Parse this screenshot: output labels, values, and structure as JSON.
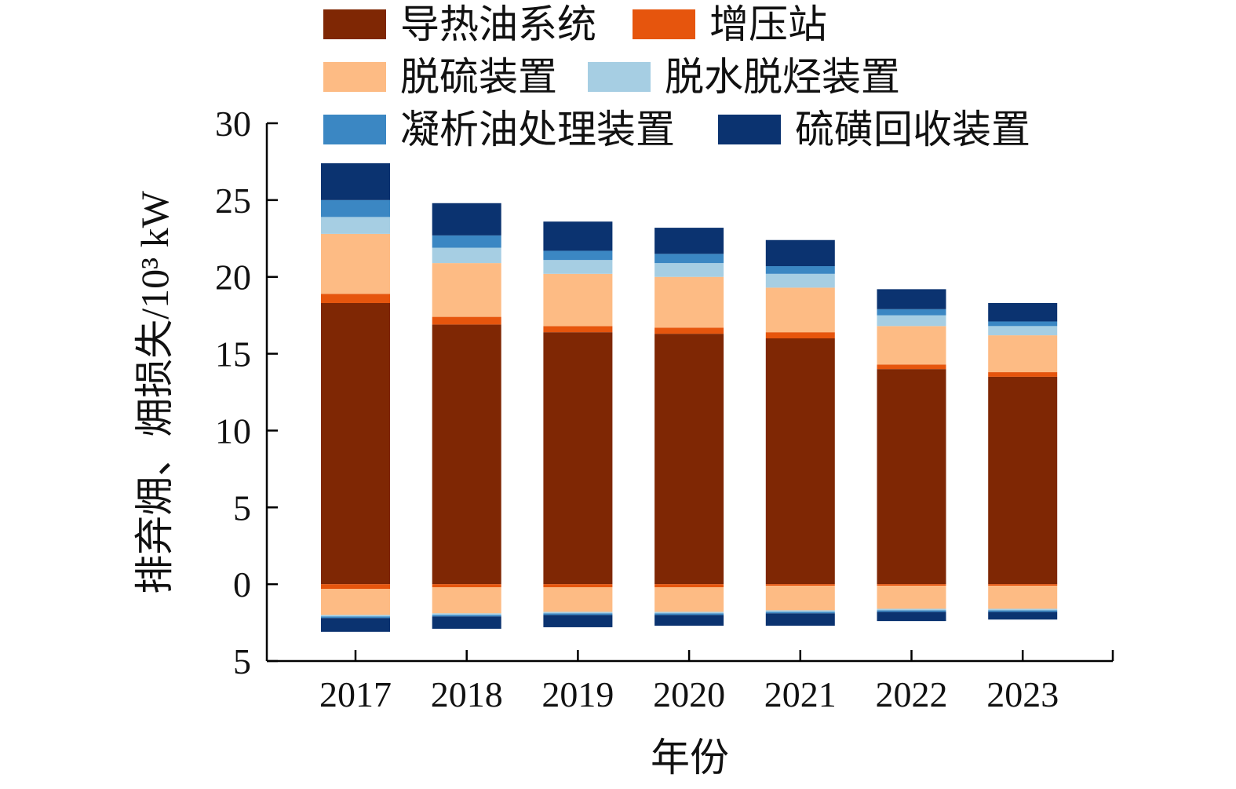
{
  "chart_data": {
    "type": "bar",
    "stacked": true,
    "categories": [
      "2017",
      "2018",
      "2019",
      "2020",
      "2021",
      "2022",
      "2023"
    ],
    "xlabel": "年份",
    "ylabel": "排弃㶲、㶲损失/10³ kW",
    "ylim": [
      -5,
      30
    ],
    "yticks": [
      30,
      25,
      20,
      15,
      10,
      5,
      0,
      -5
    ],
    "ytick_labels": [
      "30",
      "25",
      "20",
      "15",
      "10",
      "5",
      "0",
      "5"
    ],
    "legend_position": "top",
    "series": [
      {
        "name": "导热油系统",
        "color": "#7f2704",
        "values": [
          18.3,
          16.9,
          16.4,
          16.3,
          16.0,
          14.0,
          13.5
        ],
        "neg_values": [
          0,
          0,
          0,
          0,
          0,
          0,
          0
        ]
      },
      {
        "name": "增压站",
        "color": "#e6550d",
        "values": [
          0.6,
          0.5,
          0.4,
          0.4,
          0.4,
          0.3,
          0.3
        ],
        "neg_values": [
          -0.3,
          -0.2,
          -0.2,
          -0.2,
          -0.1,
          -0.1,
          -0.1
        ]
      },
      {
        "name": "脱硫装置",
        "color": "#fdbb84",
        "values": [
          3.9,
          3.5,
          3.4,
          3.3,
          2.9,
          2.5,
          2.4
        ],
        "neg_values": [
          -1.7,
          -1.7,
          -1.6,
          -1.6,
          -1.6,
          -1.5,
          -1.5
        ]
      },
      {
        "name": "脱水脱烃装置",
        "color": "#a6cee3",
        "values": [
          1.1,
          1.0,
          0.9,
          0.9,
          0.9,
          0.7,
          0.6
        ],
        "neg_values": [
          -0.1,
          -0.1,
          -0.1,
          -0.1,
          -0.1,
          -0.1,
          -0.1
        ]
      },
      {
        "name": "凝析油处理装置",
        "color": "#3b87c3",
        "values": [
          1.1,
          0.8,
          0.6,
          0.6,
          0.5,
          0.4,
          0.3
        ],
        "neg_values": [
          -0.1,
          -0.1,
          -0.1,
          -0.1,
          -0.1,
          -0.1,
          -0.1
        ]
      },
      {
        "name": "硫磺回收装置",
        "color": "#0b3370",
        "values": [
          2.4,
          2.1,
          1.9,
          1.7,
          1.7,
          1.3,
          1.2
        ],
        "neg_values": [
          -0.9,
          -0.8,
          -0.8,
          -0.7,
          -0.8,
          -0.6,
          -0.5
        ]
      }
    ]
  }
}
